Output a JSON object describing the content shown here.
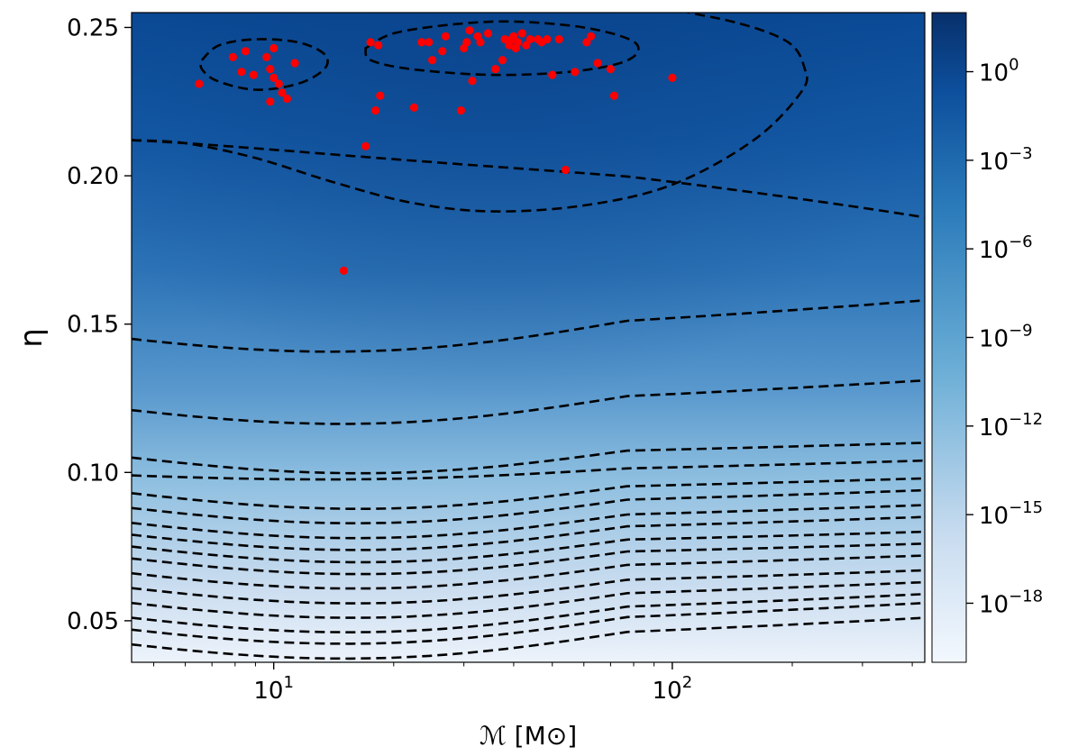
{
  "chart_data": {
    "type": "heatmap",
    "xlabel": "ℳ [M⊙]",
    "ylabel": "η",
    "x_scale": "log",
    "xlim": [
      4.4,
      430
    ],
    "ylim": [
      0.036,
      0.255
    ],
    "x_ticks": [
      {
        "value": 10,
        "base": "10",
        "exp": "1"
      },
      {
        "value": 100,
        "base": "10",
        "exp": "2"
      }
    ],
    "y_ticks": [
      {
        "value": 0.05,
        "label": "0.05"
      },
      {
        "value": 0.1,
        "label": "0.10"
      },
      {
        "value": 0.15,
        "label": "0.15"
      },
      {
        "value": 0.2,
        "label": "0.20"
      },
      {
        "value": 0.25,
        "label": "0.25"
      }
    ],
    "colorbar": {
      "scale": "log",
      "range_exp": [
        -20,
        2
      ],
      "ticks": [
        {
          "exp": "0",
          "base": "10"
        },
        {
          "exp": "−3",
          "base": "10"
        },
        {
          "exp": "−6",
          "base": "10"
        },
        {
          "exp": "−9",
          "base": "10"
        },
        {
          "exp": "−12",
          "base": "10"
        },
        {
          "exp": "−15",
          "base": "10"
        },
        {
          "exp": "−18",
          "base": "10"
        }
      ],
      "colormap": [
        "#f3f8fe",
        "#c7dbef",
        "#6baed6",
        "#2b7bba",
        "#0d4f9c",
        "#08306b"
      ]
    },
    "contours": {
      "style": "dashed",
      "color": "#000000",
      "open_levels_left_right": [
        [
          0.212,
          0.186
        ],
        [
          0.145,
          0.158
        ],
        [
          0.121,
          0.131
        ],
        [
          0.105,
          0.11
        ],
        [
          0.099,
          0.104
        ],
        [
          0.093,
          0.098
        ],
        [
          0.088,
          0.094
        ],
        [
          0.083,
          0.089
        ],
        [
          0.079,
          0.085
        ],
        [
          0.075,
          0.08
        ],
        [
          0.071,
          0.076
        ],
        [
          0.066,
          0.072
        ],
        [
          0.061,
          0.067
        ],
        [
          0.056,
          0.063
        ],
        [
          0.051,
          0.059
        ],
        [
          0.047,
          0.056
        ],
        [
          0.042,
          0.051
        ]
      ]
    },
    "scatter": {
      "color": "#ff0000",
      "points": [
        [
          6.5,
          0.231
        ],
        [
          7.9,
          0.24
        ],
        [
          8.3,
          0.235
        ],
        [
          8.5,
          0.242
        ],
        [
          8.9,
          0.234
        ],
        [
          9.6,
          0.24
        ],
        [
          9.8,
          0.236
        ],
        [
          9.8,
          0.225
        ],
        [
          10.0,
          0.243
        ],
        [
          10.0,
          0.233
        ],
        [
          10.3,
          0.231
        ],
        [
          10.5,
          0.228
        ],
        [
          10.8,
          0.226
        ],
        [
          11.3,
          0.238
        ],
        [
          15.0,
          0.168
        ],
        [
          17.0,
          0.21
        ],
        [
          17.5,
          0.245
        ],
        [
          18.0,
          0.222
        ],
        [
          18.3,
          0.244
        ],
        [
          18.5,
          0.227
        ],
        [
          22.5,
          0.223
        ],
        [
          23.5,
          0.245
        ],
        [
          24.5,
          0.245
        ],
        [
          25.0,
          0.239
        ],
        [
          26.5,
          0.242
        ],
        [
          27.0,
          0.247
        ],
        [
          29.5,
          0.222
        ],
        [
          30.0,
          0.243
        ],
        [
          30.5,
          0.245
        ],
        [
          31.0,
          0.249
        ],
        [
          31.5,
          0.232
        ],
        [
          32.5,
          0.247
        ],
        [
          33.0,
          0.245
        ],
        [
          34.5,
          0.248
        ],
        [
          36.0,
          0.236
        ],
        [
          37.5,
          0.239
        ],
        [
          38.0,
          0.246
        ],
        [
          39.0,
          0.244
        ],
        [
          39.5,
          0.246
        ],
        [
          40.0,
          0.247
        ],
        [
          40.5,
          0.243
        ],
        [
          41.0,
          0.245
        ],
        [
          42.0,
          0.248
        ],
        [
          43.0,
          0.244
        ],
        [
          44.0,
          0.246
        ],
        [
          46.0,
          0.246
        ],
        [
          47.0,
          0.245
        ],
        [
          48.5,
          0.246
        ],
        [
          50.0,
          0.234
        ],
        [
          52.0,
          0.246
        ],
        [
          54.0,
          0.202
        ],
        [
          57.0,
          0.235
        ],
        [
          61.0,
          0.245
        ],
        [
          62.5,
          0.247
        ],
        [
          65.0,
          0.238
        ],
        [
          70.0,
          0.236
        ],
        [
          71.5,
          0.227
        ],
        [
          100.0,
          0.233
        ]
      ]
    }
  }
}
